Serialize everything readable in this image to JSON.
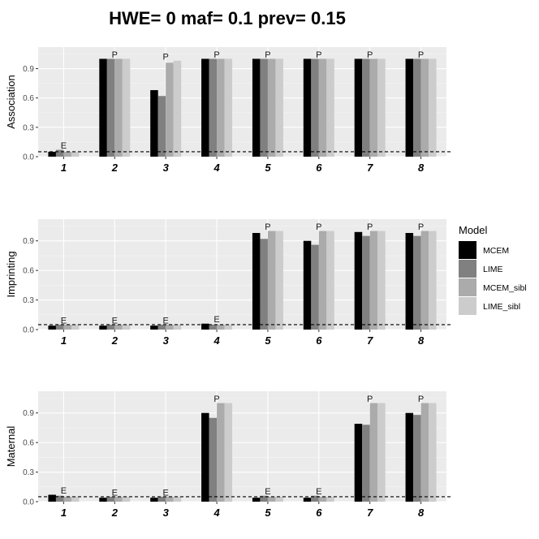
{
  "chart_data": {
    "type": "bar",
    "title": "HWE= 0 maf= 0.1 prev= 0.15",
    "categories": [
      "1",
      "2",
      "3",
      "4",
      "5",
      "6",
      "7",
      "8"
    ],
    "y_ticks": [
      "0.0",
      "0.3",
      "0.6",
      "0.9"
    ],
    "ylim": [
      0,
      1.12
    ],
    "reference_line": 0.05,
    "legend": {
      "title": "Model",
      "placement": "right",
      "entries": [
        {
          "name": "MCEM",
          "color": "#000000"
        },
        {
          "name": "LIME",
          "color": "#808080"
        },
        {
          "name": "MCEM_sibl",
          "color": "#ababab"
        },
        {
          "name": "LIME_sibl",
          "color": "#cccccc"
        }
      ]
    },
    "panels": [
      {
        "ylabel": "Association",
        "series": [
          {
            "name": "MCEM",
            "values": [
              0.05,
              1.0,
              0.68,
              1.0,
              1.0,
              1.0,
              1.0,
              1.0
            ]
          },
          {
            "name": "LIME",
            "values": [
              0.07,
              1.0,
              0.62,
              1.0,
              1.0,
              1.0,
              1.0,
              1.0
            ]
          },
          {
            "name": "MCEM_sibl",
            "values": [
              0.05,
              1.0,
              0.96,
              1.0,
              1.0,
              1.0,
              1.0,
              1.0
            ]
          },
          {
            "name": "LIME_sibl",
            "values": [
              0.05,
              1.0,
              0.98,
              1.0,
              1.0,
              1.0,
              1.0,
              1.0
            ]
          }
        ],
        "annotations": [
          "E",
          "P",
          "P",
          "P",
          "P",
          "P",
          "P",
          "P"
        ]
      },
      {
        "ylabel": "Imprinting",
        "series": [
          {
            "name": "MCEM",
            "values": [
              0.04,
              0.04,
              0.04,
              0.06,
              0.98,
              0.9,
              0.99,
              0.98
            ]
          },
          {
            "name": "LIME",
            "values": [
              0.05,
              0.05,
              0.05,
              0.05,
              0.92,
              0.86,
              0.95,
              0.95
            ]
          },
          {
            "name": "MCEM_sibl",
            "values": [
              0.05,
              0.05,
              0.05,
              0.05,
              1.0,
              1.0,
              1.0,
              1.0
            ]
          },
          {
            "name": "LIME_sibl",
            "values": [
              0.05,
              0.05,
              0.05,
              0.05,
              1.0,
              1.0,
              1.0,
              1.0
            ]
          }
        ],
        "annotations": [
          "E",
          "E",
          "E",
          "E",
          "P",
          "P",
          "P",
          "P"
        ]
      },
      {
        "ylabel": "Maternal",
        "series": [
          {
            "name": "MCEM",
            "values": [
              0.07,
              0.04,
              0.04,
              0.9,
              0.04,
              0.04,
              0.79,
              0.9
            ]
          },
          {
            "name": "LIME",
            "values": [
              0.06,
              0.05,
              0.05,
              0.85,
              0.06,
              0.06,
              0.78,
              0.88
            ]
          },
          {
            "name": "MCEM_sibl",
            "values": [
              0.05,
              0.05,
              0.05,
              1.0,
              0.05,
              0.05,
              1.0,
              1.0
            ]
          },
          {
            "name": "LIME_sibl",
            "values": [
              0.05,
              0.05,
              0.05,
              1.0,
              0.05,
              0.05,
              1.0,
              1.0
            ]
          }
        ],
        "annotations": [
          "E",
          "E",
          "E",
          "P",
          "E",
          "E",
          "P",
          "P"
        ]
      }
    ]
  }
}
